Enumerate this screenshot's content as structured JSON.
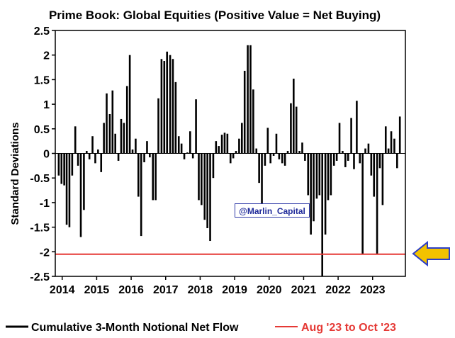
{
  "chart_data": {
    "type": "bar",
    "title": "Prime Book: Global Equities (Positive Value = Net Buying)",
    "ylabel": "Standard Deviations",
    "xlabel": "",
    "ylim": [
      -2.5,
      2.5
    ],
    "xlim": [
      2013.8,
      2023.95
    ],
    "y_ticks": [
      2.5,
      2,
      1.5,
      1,
      0.5,
      0,
      -0.5,
      -1,
      -1.5,
      -2,
      -2.5
    ],
    "y_tick_labels": [
      "2.5",
      "2",
      "1.5",
      "1",
      "0.5",
      "0",
      "-0.5",
      "-1",
      "-1.5",
      "-2",
      "-2.5"
    ],
    "x_tick_labels": [
      "2014",
      "2015",
      "2016",
      "2017",
      "2018",
      "2019",
      "2020",
      "2021",
      "2022",
      "2023"
    ],
    "series": [
      {
        "name": "Cumulative 3-Month Notional Net Flow",
        "color": "#000000",
        "x": [
          2013.9,
          2013.98,
          2014.06,
          2014.13,
          2014.21,
          2014.29,
          2014.38,
          2014.46,
          2014.54,
          2014.63,
          2014.71,
          2014.79,
          2014.88,
          2014.96,
          2015.04,
          2015.13,
          2015.21,
          2015.29,
          2015.38,
          2015.46,
          2015.54,
          2015.63,
          2015.71,
          2015.79,
          2015.88,
          2015.96,
          2016.04,
          2016.13,
          2016.21,
          2016.29,
          2016.38,
          2016.46,
          2016.54,
          2016.63,
          2016.71,
          2016.79,
          2016.88,
          2016.96,
          2017.04,
          2017.13,
          2017.21,
          2017.29,
          2017.38,
          2017.46,
          2017.54,
          2017.63,
          2017.71,
          2017.79,
          2017.88,
          2017.96,
          2018.04,
          2018.13,
          2018.21,
          2018.29,
          2018.38,
          2018.46,
          2018.54,
          2018.63,
          2018.71,
          2018.79,
          2018.88,
          2018.96,
          2019.04,
          2019.13,
          2019.21,
          2019.29,
          2019.38,
          2019.46,
          2019.54,
          2019.63,
          2019.71,
          2019.79,
          2019.88,
          2019.96,
          2020.04,
          2020.13,
          2020.21,
          2020.29,
          2020.38,
          2020.46,
          2020.54,
          2020.63,
          2020.71,
          2020.79,
          2020.88,
          2020.96,
          2021.04,
          2021.13,
          2021.21,
          2021.29,
          2021.38,
          2021.46,
          2021.54,
          2021.63,
          2021.71,
          2021.79,
          2021.88,
          2021.96,
          2022.04,
          2022.13,
          2022.21,
          2022.29,
          2022.38,
          2022.46,
          2022.54,
          2022.63,
          2022.71,
          2022.79,
          2022.88,
          2022.96,
          2023.04,
          2023.13,
          2023.21,
          2023.29,
          2023.38,
          2023.46,
          2023.54,
          2023.63,
          2023.71,
          2023.79
        ],
        "values": [
          -0.45,
          -0.62,
          -0.65,
          -1.45,
          -1.5,
          -0.45,
          0.55,
          -0.25,
          -1.7,
          -1.15,
          0.05,
          -0.12,
          0.35,
          -0.2,
          0.08,
          -0.38,
          0.62,
          1.22,
          0.8,
          1.28,
          0.4,
          -0.15,
          0.7,
          0.62,
          1.37,
          2.0,
          0.08,
          0.3,
          -0.88,
          -1.68,
          -0.18,
          0.25,
          -0.08,
          -0.95,
          -0.95,
          1.12,
          1.92,
          1.88,
          2.07,
          2.0,
          1.92,
          1.45,
          0.35,
          0.2,
          -0.12,
          0.02,
          0.45,
          -0.1,
          1.1,
          -0.95,
          -1.05,
          -1.35,
          -1.52,
          -1.78,
          -0.5,
          0.25,
          0.15,
          0.38,
          0.42,
          0.4,
          -0.2,
          -0.1,
          0.05,
          0.3,
          0.62,
          1.68,
          2.2,
          2.2,
          1.3,
          0.1,
          -0.6,
          -1.05,
          -0.25,
          0.52,
          -0.2,
          -0.05,
          0.4,
          -0.12,
          -0.2,
          -0.25,
          0.05,
          1.02,
          1.52,
          0.95,
          0.05,
          0.22,
          -0.15,
          -0.85,
          -1.65,
          -1.38,
          -0.92,
          -0.85,
          -2.5,
          -1.65,
          -0.95,
          -0.85,
          -0.25,
          -0.15,
          0.62,
          0.05,
          -0.28,
          -0.15,
          0.72,
          -0.32,
          1.07,
          -0.2,
          -2.05,
          0.1,
          0.2,
          -0.45,
          -0.88,
          -2.05,
          -0.3,
          -1.05,
          0.55,
          0.1,
          0.45,
          0.3,
          -0.3,
          0.75
        ]
      }
    ],
    "reference_lines": [
      {
        "name": "Aug '23 to Oct '23",
        "y": -2.05,
        "color": "#e53935"
      }
    ],
    "annotations": [
      {
        "text": "@Marlin_Capital"
      }
    ],
    "arrow_color": "#f2c200",
    "arrow_outline": "#2b3ec8",
    "legend_position": "bottom"
  }
}
